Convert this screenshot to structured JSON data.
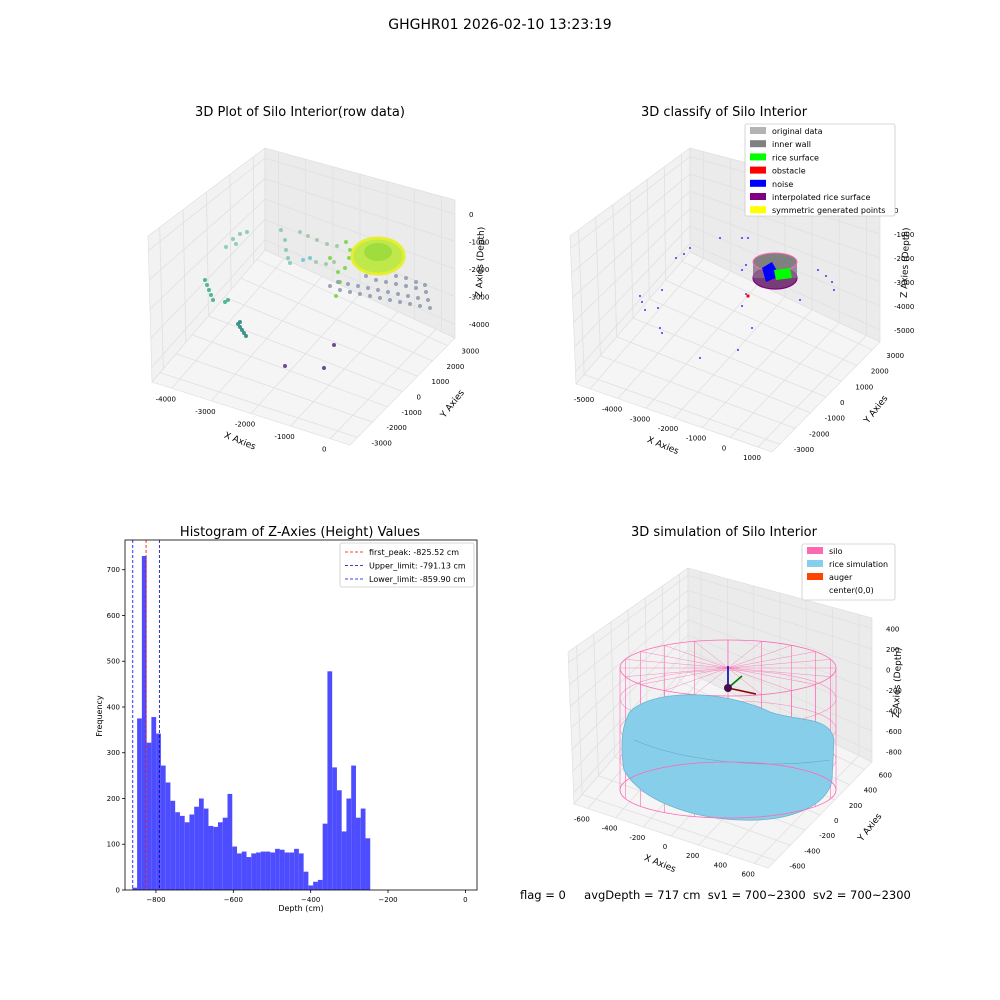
{
  "figure_title": "GHGHR01 2026-02-10 13:23:19",
  "footer": {
    "flag": "flag = 0",
    "avg_depth": "avgDepth = 717 cm",
    "sv1": "sv1 = 700~2300",
    "sv2": "sv2 = 700~2300"
  },
  "colors": {
    "histogram_bar": "#4d4dff",
    "first_peak_line": "#ff0000",
    "upper_limit_line": "#0000aa",
    "lower_limit_line": "#0000ff",
    "original_data": "#b3b3b3",
    "inner_wall": "#808080",
    "rice_surface": "#00ff00",
    "obstacle": "#ff0000",
    "noise": "#0000ff",
    "interpolated_rice_surface": "#800080",
    "symmetric_generated_points": "#ffff00",
    "silo": "#ff69b4",
    "rice_simulation": "#87ceeb",
    "auger": "#ff4500"
  },
  "chart_data": [
    {
      "type": "scatter",
      "title": "3D Plot of Silo Interior(row data)",
      "xlabel": "X Axies",
      "ylabel": "Y Axies",
      "zlabel": "Z Axies (Depth)",
      "x_ticks": [
        "-4000",
        "-3000",
        "-2000",
        "-1000",
        "0"
      ],
      "y_ticks": [
        "-3000",
        "-2000",
        "-1000",
        "0",
        "1000",
        "2000",
        "3000"
      ],
      "z_ticks": [
        "0",
        "-1000",
        "-2000",
        "-3000",
        "-4000"
      ],
      "legend": null,
      "grid": true
    },
    {
      "type": "scatter",
      "title": "3D classify of Silo Interior",
      "xlabel": "X Axies",
      "ylabel": "Y Axies",
      "zlabel": "Z Axies (Depth)",
      "x_ticks": [
        "-5000",
        "-4000",
        "-3000",
        "-2000",
        "-1000",
        "0",
        "1000"
      ],
      "y_ticks": [
        "-3000",
        "-2000",
        "-1000",
        "0",
        "1000",
        "2000",
        "3000"
      ],
      "z_ticks": [
        "0",
        "-1000",
        "-2000",
        "-3000",
        "-4000",
        "-5000"
      ],
      "legend_position": "top-right",
      "legend": [
        {
          "label": "original data",
          "color": "#b3b3b3"
        },
        {
          "label": "inner wall",
          "color": "#808080"
        },
        {
          "label": "rice surface",
          "color": "#00ff00"
        },
        {
          "label": "obstacle",
          "color": "#ff0000"
        },
        {
          "label": "noise",
          "color": "#0000ff"
        },
        {
          "label": "interpolated rice surface",
          "color": "#800080"
        },
        {
          "label": "symmetric generated points",
          "color": "#ffff00"
        }
      ],
      "grid": true
    },
    {
      "type": "bar",
      "title": "Histogram of Z-Axies (Height) Values",
      "xlabel": "Depth (cm)",
      "ylabel": "Frequency",
      "xlim": [
        -880,
        30
      ],
      "ylim": [
        0,
        765
      ],
      "x_ticks": [
        -800,
        -600,
        -400,
        -200,
        0
      ],
      "y_ticks": [
        0,
        100,
        200,
        300,
        400,
        500,
        600,
        700
      ],
      "bin_start": -861,
      "bin_width": 12.3,
      "values": [
        5,
        375,
        730,
        322,
        378,
        342,
        272,
        235,
        195,
        170,
        162,
        148,
        165,
        182,
        200,
        178,
        140,
        138,
        148,
        158,
        210,
        95,
        80,
        84,
        72,
        80,
        82,
        84,
        84,
        82,
        90,
        88,
        82,
        82,
        90,
        80,
        40,
        10,
        18,
        22,
        145,
        478,
        268,
        218,
        128,
        200,
        272,
        158,
        178,
        113
      ],
      "vlines": [
        {
          "label": "first_peak: -825.52 cm",
          "x": -825.52,
          "color": "#ff0000"
        },
        {
          "label": "Upper_limit: -791.13 cm",
          "x": -791.13,
          "color": "#0000aa"
        },
        {
          "label": "Lower_limit: -859.90 cm",
          "x": -859.9,
          "color": "#0000ff"
        }
      ],
      "legend_position": "top-right",
      "grid": false
    },
    {
      "type": "scatter",
      "title": "3D simulation of Silo Interior",
      "xlabel": "X Axies",
      "ylabel": "Y Axies",
      "zlabel": "Z Axies (Depth)",
      "x_ticks": [
        "-600",
        "-400",
        "-200",
        "0",
        "200",
        "400",
        "600"
      ],
      "y_ticks": [
        "-600",
        "-400",
        "-200",
        "0",
        "200",
        "400",
        "600"
      ],
      "z_ticks": [
        "400",
        "200",
        "0",
        "-200",
        "-400",
        "-600",
        "-800"
      ],
      "legend_position": "top-right",
      "legend": [
        {
          "label": "silo",
          "color": "#ff69b4"
        },
        {
          "label": "rice simulation",
          "color": "#87ceeb"
        },
        {
          "label": "auger",
          "color": "#ff4500"
        },
        {
          "label": "center(0,0)",
          "color": "#ffffff"
        }
      ],
      "grid": true
    }
  ]
}
